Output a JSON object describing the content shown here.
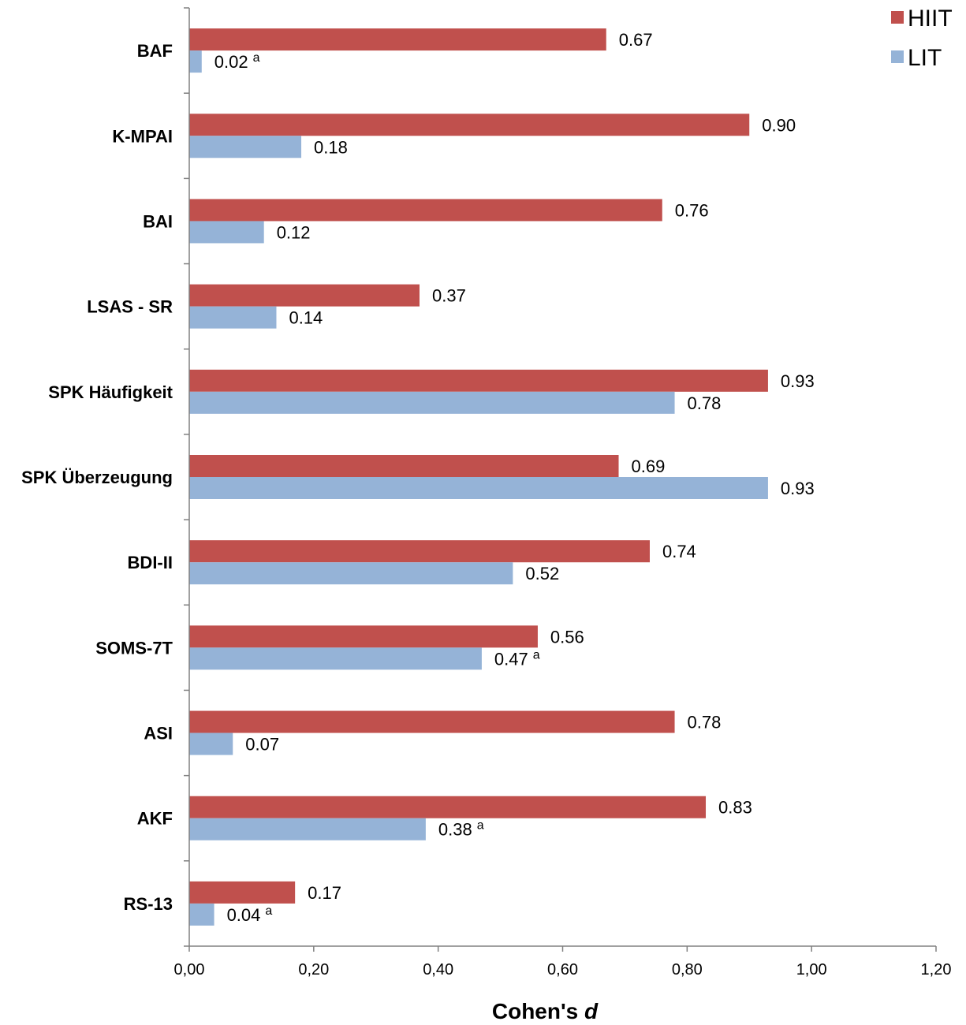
{
  "chart_data": {
    "type": "bar",
    "orientation": "horizontal",
    "categories": [
      "BAF",
      "K-MPAI",
      "BAI",
      "LSAS - SR",
      "SPK Häufigkeit",
      "SPK Überzeugung",
      "BDI-II",
      "SOMS-7T",
      "ASI",
      "AKF",
      "RS-13"
    ],
    "series": [
      {
        "name": "HIIT",
        "color": "#C0504D",
        "values": [
          0.67,
          0.9,
          0.76,
          0.37,
          0.93,
          0.69,
          0.74,
          0.56,
          0.78,
          0.83,
          0.17
        ],
        "labels": [
          "0.67",
          "0.90",
          "0.76",
          "0.37",
          "0.93",
          "0.69",
          "0.74",
          "0.56",
          "0.78",
          "0.83",
          "0.17"
        ],
        "markers": [
          "",
          "",
          "",
          "",
          "",
          "",
          "",
          "",
          "",
          "",
          ""
        ]
      },
      {
        "name": "LIT",
        "color": "#95B3D7",
        "values": [
          0.02,
          0.18,
          0.12,
          0.14,
          0.78,
          0.93,
          0.52,
          0.47,
          0.07,
          0.38,
          0.04
        ],
        "labels": [
          "0.02",
          "0.18",
          "0.12",
          "0.14",
          "0.78",
          "0.93",
          "0.52",
          "0.47",
          "0.07",
          "0.38",
          "0.04"
        ],
        "markers": [
          "a",
          "",
          "",
          "",
          "",
          "",
          "",
          "a",
          "",
          "a",
          "a"
        ]
      }
    ],
    "xlim": [
      0,
      1.2
    ],
    "xticks": [
      "0,00",
      "0,20",
      "0,40",
      "0,60",
      "0,80",
      "1,00",
      "1,20"
    ],
    "xlabel": "Cohen's",
    "xlabel_italic": "d",
    "ylabel": "",
    "title": "",
    "legend_position": "top-right",
    "grid": false
  }
}
